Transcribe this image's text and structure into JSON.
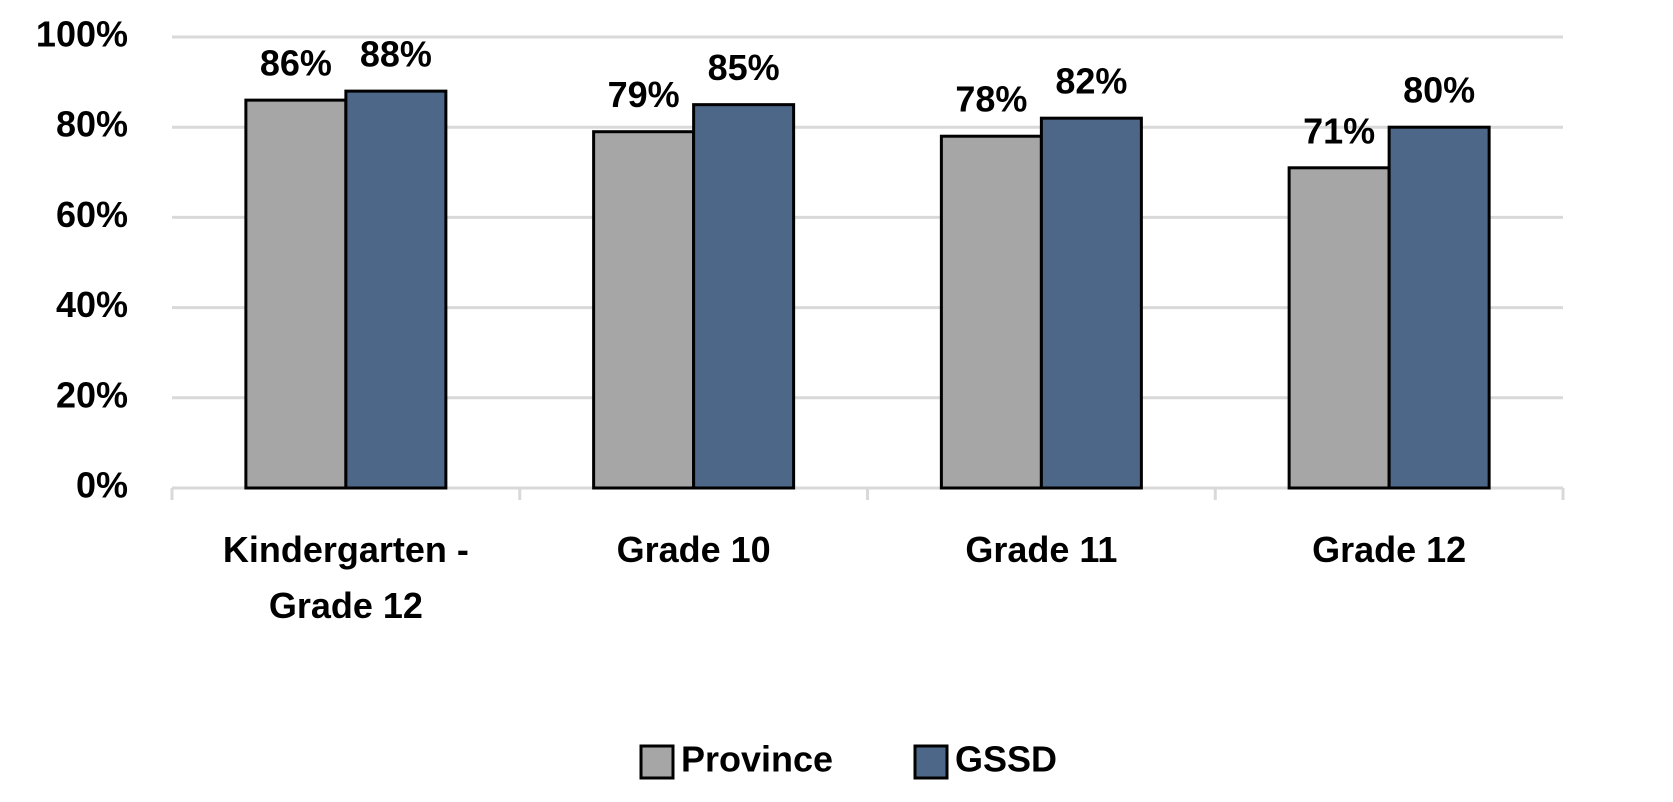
{
  "chart_data": {
    "type": "bar",
    "categories": [
      "Kindergarten - Grade 12",
      "Grade 10",
      "Grade 11",
      "Grade 12"
    ],
    "series": [
      {
        "name": "Province",
        "color": "#a6a6a6",
        "values": [
          86,
          79,
          78,
          71
        ],
        "value_labels": [
          "86%",
          "79%",
          "78%",
          "71%"
        ]
      },
      {
        "name": "GSSD",
        "color": "#4d6788",
        "values": [
          88,
          85,
          82,
          80
        ],
        "value_labels": [
          "88%",
          "85%",
          "82%",
          "80%"
        ]
      }
    ],
    "ylim": [
      0,
      100
    ],
    "yticks": [
      {
        "value": 0,
        "label": "0%"
      },
      {
        "value": 20,
        "label": "20%"
      },
      {
        "value": 40,
        "label": "40%"
      },
      {
        "value": 60,
        "label": "60%"
      },
      {
        "value": 80,
        "label": "80%"
      },
      {
        "value": 100,
        "label": "100%"
      }
    ],
    "grid": true,
    "legend": "bottom"
  }
}
